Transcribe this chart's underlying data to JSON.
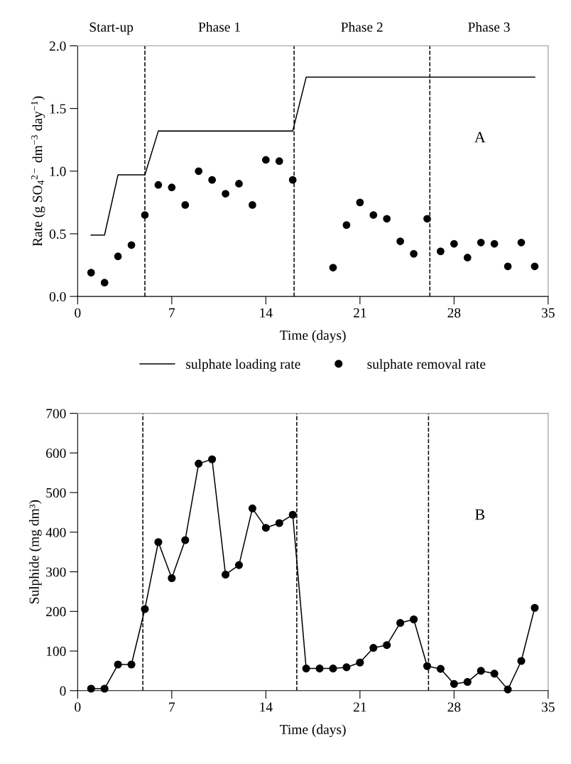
{
  "chart_data": [
    {
      "type": "line",
      "xlabel": "Time (days)",
      "ylabel": "Rate (g SO$_{4}$$^{2−}$ dm$^{−3}$ day$^{−1}$)",
      "xlim": [
        0,
        35
      ],
      "xticks": [
        0,
        7,
        14,
        21,
        28,
        35
      ],
      "ylim": [
        0,
        2.0
      ],
      "yticks": [
        {
          "value": 0,
          "label": "0.0"
        },
        {
          "value": 0.5,
          "label": "0.5"
        },
        {
          "value": 1.0,
          "label": "1.0"
        },
        {
          "value": 1.5,
          "label": "1.5"
        },
        {
          "value": 2.0,
          "label": "2.0"
        }
      ],
      "series": [
        {
          "name": "sulphate loading rate",
          "type": "line",
          "marker": "none",
          "color": "#000000",
          "x": [
            1,
            2,
            3,
            5,
            6,
            16,
            17,
            34
          ],
          "values": [
            0.49,
            0.49,
            0.97,
            0.97,
            1.32,
            1.32,
            1.75,
            1.75
          ]
        },
        {
          "name": "sulphate removal rate",
          "type": "scatter",
          "marker": "circle",
          "color": "#000000",
          "x": [
            1,
            2,
            3,
            4,
            5,
            6,
            7,
            8,
            9,
            10,
            11,
            12,
            13,
            14,
            15,
            16,
            19,
            20,
            21,
            22,
            23,
            24,
            25,
            26,
            27,
            28,
            29,
            30,
            31,
            32,
            33,
            34
          ],
          "values": [
            0.19,
            0.11,
            0.32,
            0.41,
            0.65,
            0.89,
            0.87,
            0.73,
            1.0,
            0.93,
            0.82,
            0.9,
            0.73,
            1.09,
            1.08,
            0.93,
            0.23,
            0.57,
            0.75,
            0.65,
            0.62,
            0.44,
            0.34,
            0.62,
            0.36,
            0.42,
            0.31,
            0.43,
            0.42,
            0.24,
            0.43,
            0.24
          ]
        }
      ],
      "ref_lines": [
        {
          "axis": "x",
          "value": 5,
          "line_style": "dashed",
          "color": "#000000"
        },
        {
          "axis": "x",
          "value": 16.1,
          "line_style": "dashed",
          "color": "#000000"
        },
        {
          "axis": "x",
          "value": 26.2,
          "line_style": "dashed",
          "color": "#000000"
        }
      ],
      "annotations": [
        "Start-up",
        "Phase 1",
        "Phase 2",
        "Phase 3",
        "A"
      ],
      "legend": "bottom",
      "grid": false
    },
    {
      "type": "line",
      "xlabel": "Time (days)",
      "ylabel": "Sulphide (mg dm³)",
      "xlim": [
        0,
        35
      ],
      "xticks": [
        0,
        7,
        14,
        21,
        28,
        35
      ],
      "ylim": [
        0,
        700
      ],
      "yticks": [
        0,
        100,
        200,
        300,
        400,
        500,
        600,
        700
      ],
      "marker": "circle",
      "line_style": "solid",
      "series": [
        {
          "color": "#000000",
          "x": [
            1,
            2,
            3,
            4,
            5,
            6,
            7,
            8,
            9,
            10,
            11,
            12,
            13,
            14,
            15,
            16,
            17,
            18,
            19,
            20,
            21,
            22,
            23,
            24,
            25,
            26,
            27,
            28,
            29,
            30,
            31,
            32,
            33,
            34
          ],
          "values": [
            5,
            5,
            66,
            66,
            206,
            375,
            284,
            380,
            573,
            584,
            293,
            317,
            460,
            411,
            423,
            444,
            56,
            56,
            56,
            59,
            71,
            108,
            115,
            171,
            180,
            62,
            55,
            17,
            22,
            50,
            43,
            3,
            75,
            209
          ]
        }
      ],
      "ref_lines": [
        {
          "axis": "x",
          "value": 4.85,
          "line_style": "dashed",
          "color": "#000000"
        },
        {
          "axis": "x",
          "value": 16.3,
          "line_style": "dashed",
          "color": "#000000"
        },
        {
          "axis": "x",
          "value": 26.1,
          "line_style": "dashed",
          "color": "#000000"
        }
      ],
      "annotations": [
        "B"
      ],
      "grid": false
    }
  ]
}
